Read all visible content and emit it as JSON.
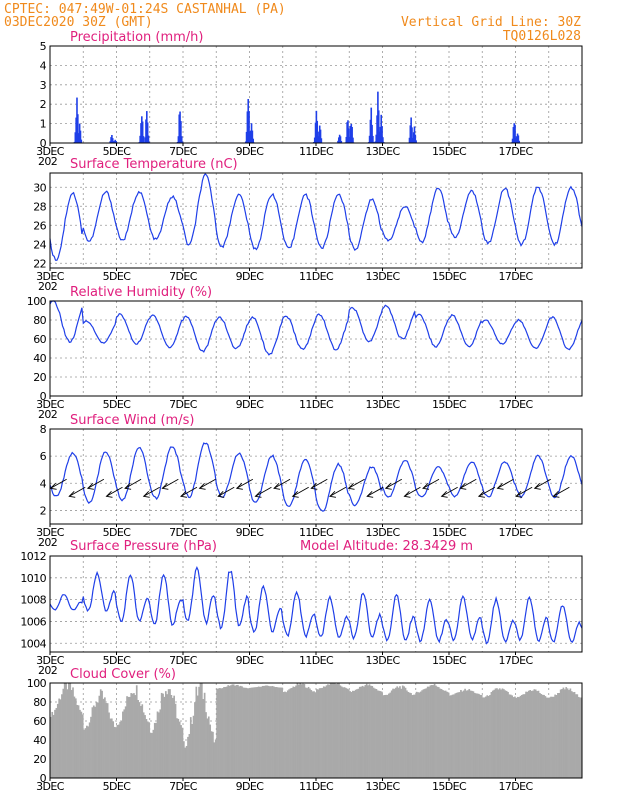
{
  "header": {
    "station_line": "CPTEC:   047:49W-01:24S   CASTANHAL (PA)",
    "date_line": "03DEC2020 30Z (GMT)",
    "grid_line": "Vertical Grid Line: 30Z",
    "code": "TQ0126L028"
  },
  "x_axis": {
    "tick_labels": [
      "3DEC",
      "5DEC",
      "7DEC",
      "9DEC",
      "11DEC",
      "13DEC",
      "15DEC",
      "17DEC"
    ],
    "partial_label": "202"
  },
  "colors": {
    "line": "#1f3fe8",
    "bar": "#1f3fe8",
    "cloud": "#a9a9a9",
    "title": "#e0207e",
    "header": "#f08a1c"
  },
  "chart_data": [
    {
      "type": "bar",
      "title": "Precipitation (mm/h)",
      "ylim": [
        0,
        5
      ],
      "yticks": [
        "0",
        "1",
        "2",
        "3",
        "4",
        "5"
      ],
      "x_unit": "days since 03DEC 00Z",
      "bursts": [
        {
          "x": 0.8,
          "peak": 2.7
        },
        {
          "x": 0.88,
          "peak": 1.0
        },
        {
          "x": 1.85,
          "peak": 0.5
        },
        {
          "x": 1.95,
          "peak": 0.2
        },
        {
          "x": 2.75,
          "peak": 1.8
        },
        {
          "x": 2.9,
          "peak": 1.9
        },
        {
          "x": 3.9,
          "peak": 2.3
        },
        {
          "x": 5.95,
          "peak": 3.2
        },
        {
          "x": 6.05,
          "peak": 1.3
        },
        {
          "x": 8.0,
          "peak": 1.8
        },
        {
          "x": 8.1,
          "peak": 1.2
        },
        {
          "x": 8.7,
          "peak": 0.6
        },
        {
          "x": 8.95,
          "peak": 1.6
        },
        {
          "x": 9.05,
          "peak": 1.4
        },
        {
          "x": 9.65,
          "peak": 1.9
        },
        {
          "x": 9.85,
          "peak": 2.9
        },
        {
          "x": 9.95,
          "peak": 1.7
        },
        {
          "x": 10.85,
          "peak": 1.4
        },
        {
          "x": 10.95,
          "peak": 0.9
        },
        {
          "x": 13.95,
          "peak": 1.4
        },
        {
          "x": 14.05,
          "peak": 0.6
        }
      ]
    },
    {
      "type": "line",
      "title": "Surface Temperature (nC)",
      "ylim": [
        21.5,
        31.5
      ],
      "yticks": [
        "22",
        "24",
        "26",
        "28",
        "30"
      ],
      "x_unit": "days since 03DEC 00Z",
      "daily_min": [
        22.4,
        24.3,
        24.4,
        24.5,
        23.9,
        23.8,
        23.5,
        23.5,
        23.6,
        23.5,
        24.4,
        24.2,
        24.7,
        24.1,
        24.0,
        24.0
      ],
      "daily_max": [
        29.4,
        29.5,
        29.5,
        29.0,
        31.2,
        29.2,
        29.3,
        29.2,
        29.3,
        28.7,
        28.0,
        29.9,
        29.6,
        29.9,
        30.0,
        30.0
      ]
    },
    {
      "type": "line",
      "title": "Relative Humidity (%)",
      "ylim": [
        0,
        100
      ],
      "yticks": [
        "0",
        "20",
        "40",
        "60",
        "80",
        "100"
      ],
      "x_unit": "days since 03DEC 00Z",
      "daily_min": [
        57,
        56,
        55,
        51,
        47,
        50,
        44,
        49,
        49,
        57,
        60,
        52,
        52,
        55,
        50,
        49
      ],
      "daily_max": [
        100,
        79,
        86,
        85,
        84,
        83,
        83,
        84,
        86,
        93,
        95,
        86,
        85,
        80,
        80,
        83
      ]
    },
    {
      "type": "line",
      "title": "Surface Wind (m/s)",
      "ylim": [
        1,
        8
      ],
      "yticks": [
        "2",
        "4",
        "6",
        "8"
      ],
      "x_unit": "days since 03DEC 00Z",
      "daily_min": [
        3.0,
        2.6,
        2.7,
        2.9,
        3.0,
        3.0,
        2.6,
        2.3,
        1.9,
        2.4,
        3.0,
        3.0,
        3.0,
        3.0,
        3.0,
        3.0
      ],
      "daily_max": [
        6.2,
        6.3,
        6.6,
        6.7,
        7.0,
        6.2,
        6.0,
        5.7,
        5.4,
        5.2,
        5.7,
        5.2,
        5.6,
        5.6,
        6.0,
        6.0
      ],
      "arrows": "easterly, pointing toward the southwest"
    },
    {
      "type": "line",
      "title": "Surface Pressure (hPa)",
      "annotation": "Model Altitude: 28.3429 m",
      "ylim": [
        1003.2,
        1012
      ],
      "yticks": [
        "1004",
        "1006",
        "1008",
        "1010",
        "1012"
      ],
      "x_unit": "days since 03DEC 00Z",
      "daily_high": [
        1008.5,
        1010.4,
        1010.3,
        1010.3,
        1011.0,
        1010.7,
        1009.2,
        1008.6,
        1008.2,
        1008.6,
        1008.4,
        1008.0,
        1008.2,
        1008.0,
        1008.2,
        1007.5
      ],
      "daily_low": [
        1006.7,
        1006.2,
        1004.9,
        1004.6,
        1004.8,
        1004.3,
        1004.1,
        1003.8,
        1003.7,
        1003.6,
        1003.3,
        1003.4,
        1003.5,
        1003.2,
        1003.4,
        1003.4
      ]
    },
    {
      "type": "bar",
      "title": "Cloud Cover (%)",
      "ylim": [
        0,
        100
      ],
      "yticks": [
        "0",
        "20",
        "40",
        "60",
        "80",
        "100"
      ],
      "x_unit": "days since 03DEC 00Z",
      "daily_max": [
        98,
        86,
        95,
        97,
        95,
        98,
        97,
        99,
        100,
        98,
        96,
        98,
        93,
        94,
        93,
        94
      ],
      "daily_min": [
        50,
        35,
        38,
        25,
        2,
        92,
        94,
        86,
        90,
        87,
        82,
        86,
        84,
        80,
        80,
        80
      ]
    }
  ]
}
